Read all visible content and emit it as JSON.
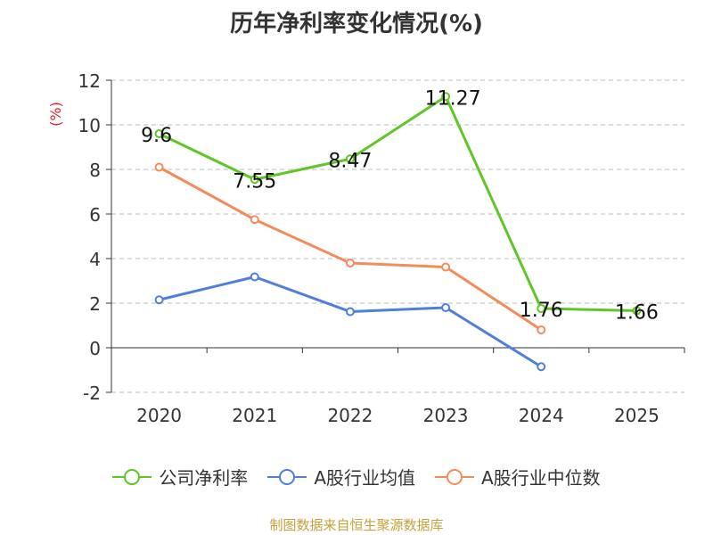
{
  "title": "历年净利率变化情况(%)",
  "source": "制图数据来自恒生聚源数据库",
  "chart_data": {
    "type": "line",
    "ylabel": "(%)",
    "ylim": [
      -2,
      12
    ],
    "yticks": [
      -2,
      0,
      2,
      4,
      6,
      8,
      10,
      12
    ],
    "categories": [
      "2020",
      "2021",
      "2022",
      "2023",
      "2024",
      "2025"
    ],
    "grid": true,
    "legend_position": "bottom",
    "series": [
      {
        "name": "公司净利率",
        "color": "#5ec726",
        "values": [
          9.6,
          7.55,
          8.47,
          11.27,
          1.76,
          1.66
        ],
        "labels": [
          "9.6",
          "7.55",
          "8.47",
          "11.27",
          "1.76",
          "1.66"
        ]
      },
      {
        "name": "A股行业均值",
        "color": "#4e7fdc",
        "values": [
          2.15,
          3.18,
          1.62,
          1.8,
          -0.85,
          null
        ]
      },
      {
        "name": "A股行业中位数",
        "color": "#f48c5a",
        "values": [
          8.1,
          5.75,
          3.8,
          3.62,
          0.8,
          null
        ]
      }
    ]
  }
}
